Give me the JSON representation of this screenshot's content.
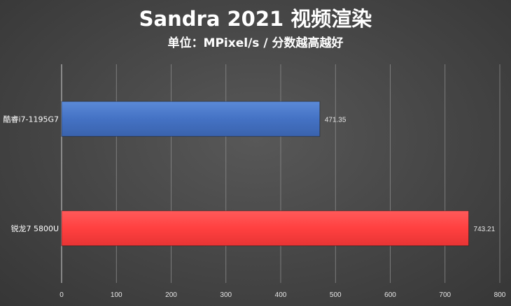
{
  "chart_data": {
    "type": "bar",
    "orientation": "horizontal",
    "title": "Sandra 2021 视频渲染",
    "subtitle": "单位：MPixel/s / 分数越高越好",
    "categories": [
      "酷睿i7-1195G7",
      "锐龙7 5800U"
    ],
    "values": [
      471.35,
      743.21
    ],
    "data_labels": [
      "471.35",
      "743.21"
    ],
    "bar_colors": [
      "#4472c4",
      "#ff4040"
    ],
    "xlim": [
      0,
      800
    ],
    "xticks": [
      0,
      100,
      200,
      300,
      400,
      500,
      600,
      700,
      800
    ],
    "xlabel": "",
    "ylabel": "",
    "grid": "vertical"
  }
}
